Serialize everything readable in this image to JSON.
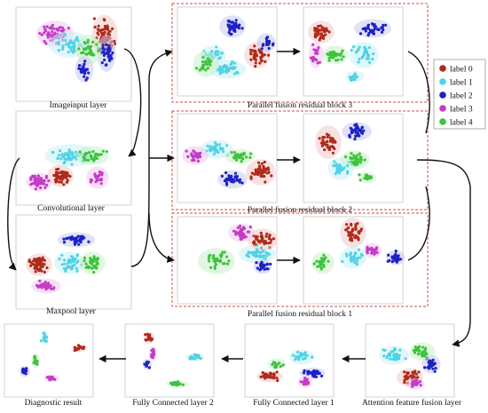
{
  "legend": {
    "items": [
      {
        "label": "label 0",
        "color": "#b02a1a"
      },
      {
        "label": "label 1",
        "color": "#4fd3e6"
      },
      {
        "label": "label 2",
        "color": "#1c22c4"
      },
      {
        "label": "label 3",
        "color": "#c43cc6"
      },
      {
        "label": "label 4",
        "color": "#3cc43c"
      }
    ]
  },
  "panels": {
    "imageinput": "Imageinput layer",
    "convolutional": "Convolutional layer",
    "maxpool": "Maxpool layer",
    "block3": "Parallel fusion residual block  3",
    "block2": "Parallel fusion residual block  2",
    "block1": "Parallel fusion residual block  1",
    "attention": "Attention feature fusion layer",
    "fc1": "Fully Connected layer 1",
    "fc2": "Fully Connected layer 2",
    "diagnostic": "Diagnostic result"
  },
  "colors": {
    "block_border": "#d44a4a",
    "arrow": "#111111",
    "panel_border": "#c8c8c8"
  }
}
